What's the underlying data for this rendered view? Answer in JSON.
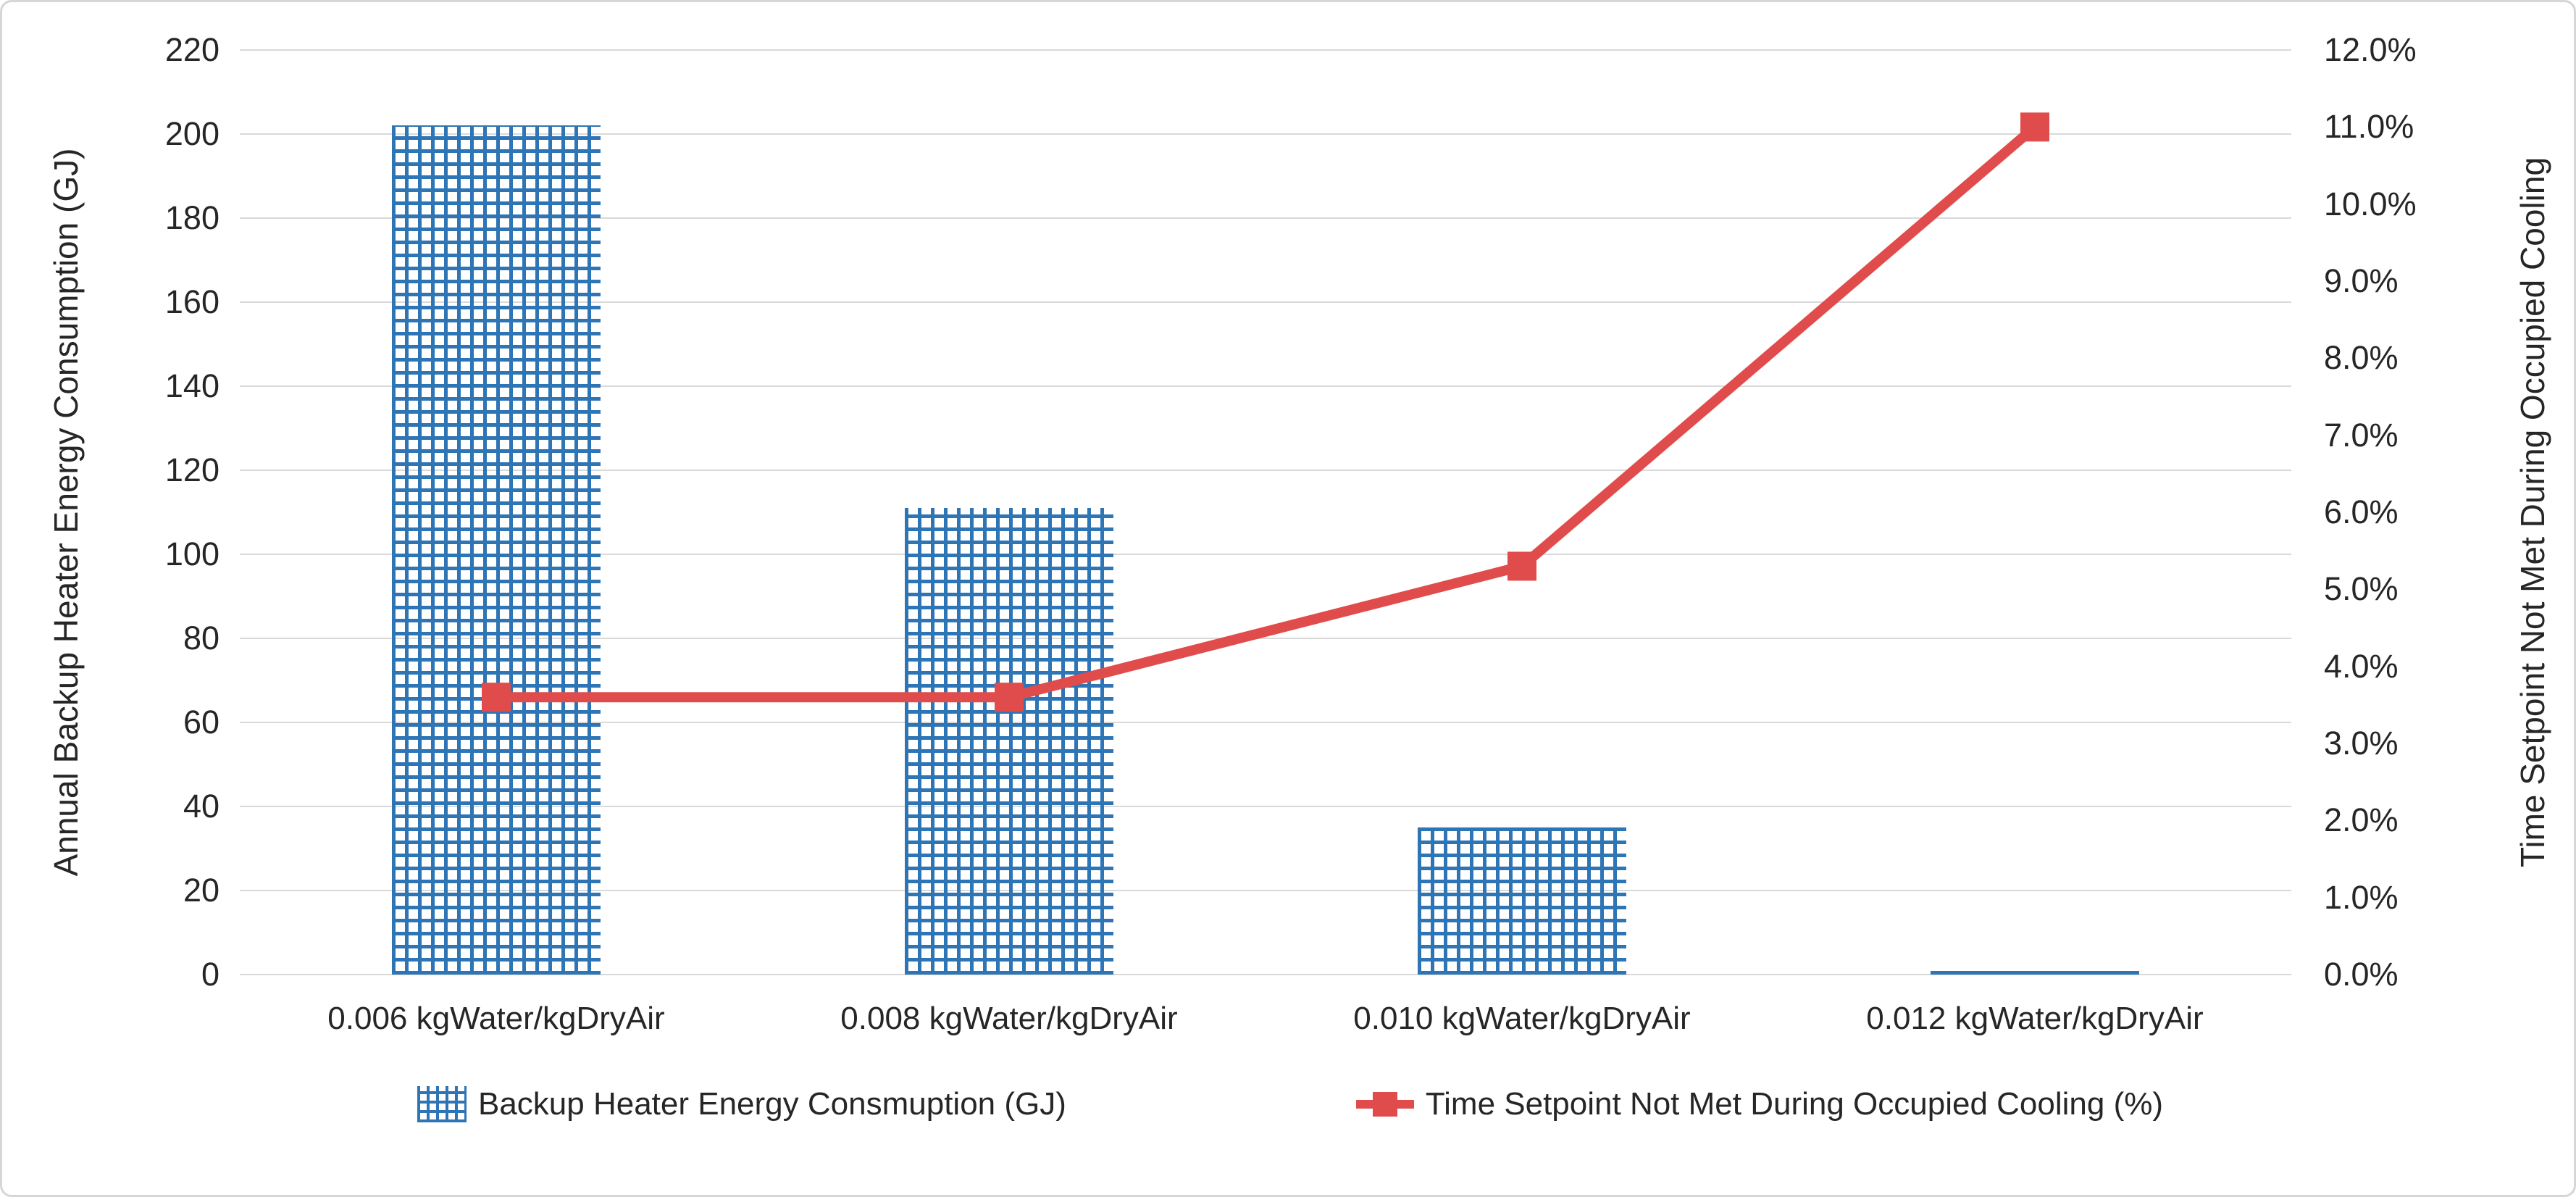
{
  "chart_data": {
    "type": "bar",
    "subtype": "combo-bar-line-dual-axis",
    "categories": [
      "0.006 kgWater/kgDryAir",
      "0.008 kgWater/kgDryAir",
      "0.010 kgWater/kgDryAir",
      "0.012 kgWater/kgDryAir"
    ],
    "series": [
      {
        "name": "Backup Heater Energy Consmuption (GJ)",
        "type": "bar",
        "axis": "left",
        "values": [
          202,
          111,
          35,
          0.8
        ],
        "color": "#2e75b6",
        "fill_pattern": "small-grid-hatch"
      },
      {
        "name": "Time Setpoint Not Met During Occupied Cooling (%)",
        "type": "line",
        "axis": "right",
        "values": [
          3.6,
          3.6,
          5.3,
          11.0
        ],
        "color": "#e04c4b",
        "marker": "square"
      }
    ],
    "left_axis": {
      "title": "Annual Backup Heater Energy Consumption (GJ)",
      "min": 0,
      "max": 220,
      "step": 20,
      "tick_labels": [
        "220",
        "200",
        "180",
        "160",
        "140",
        "120",
        "100",
        "80",
        "60",
        "40",
        "20",
        "0"
      ]
    },
    "right_axis": {
      "title": "Time Setpoint Not Met During Occupied Cooling",
      "min": 0,
      "max": 12,
      "step": 1,
      "tick_labels": [
        "12.0%",
        "11.0%",
        "10.0%",
        "9.0%",
        "8.0%",
        "7.0%",
        "6.0%",
        "5.0%",
        "4.0%",
        "3.0%",
        "2.0%",
        "1.0%",
        "0.0%"
      ]
    },
    "grid": true,
    "gridline_color": "#d9d9d9",
    "legend_position": "bottom",
    "title": ""
  },
  "colors": {
    "bar_blue": "#2e75b6",
    "line_red": "#e04c4b",
    "gridline": "#d9d9d9",
    "text": "#262626",
    "border": "#d6d6d6"
  }
}
